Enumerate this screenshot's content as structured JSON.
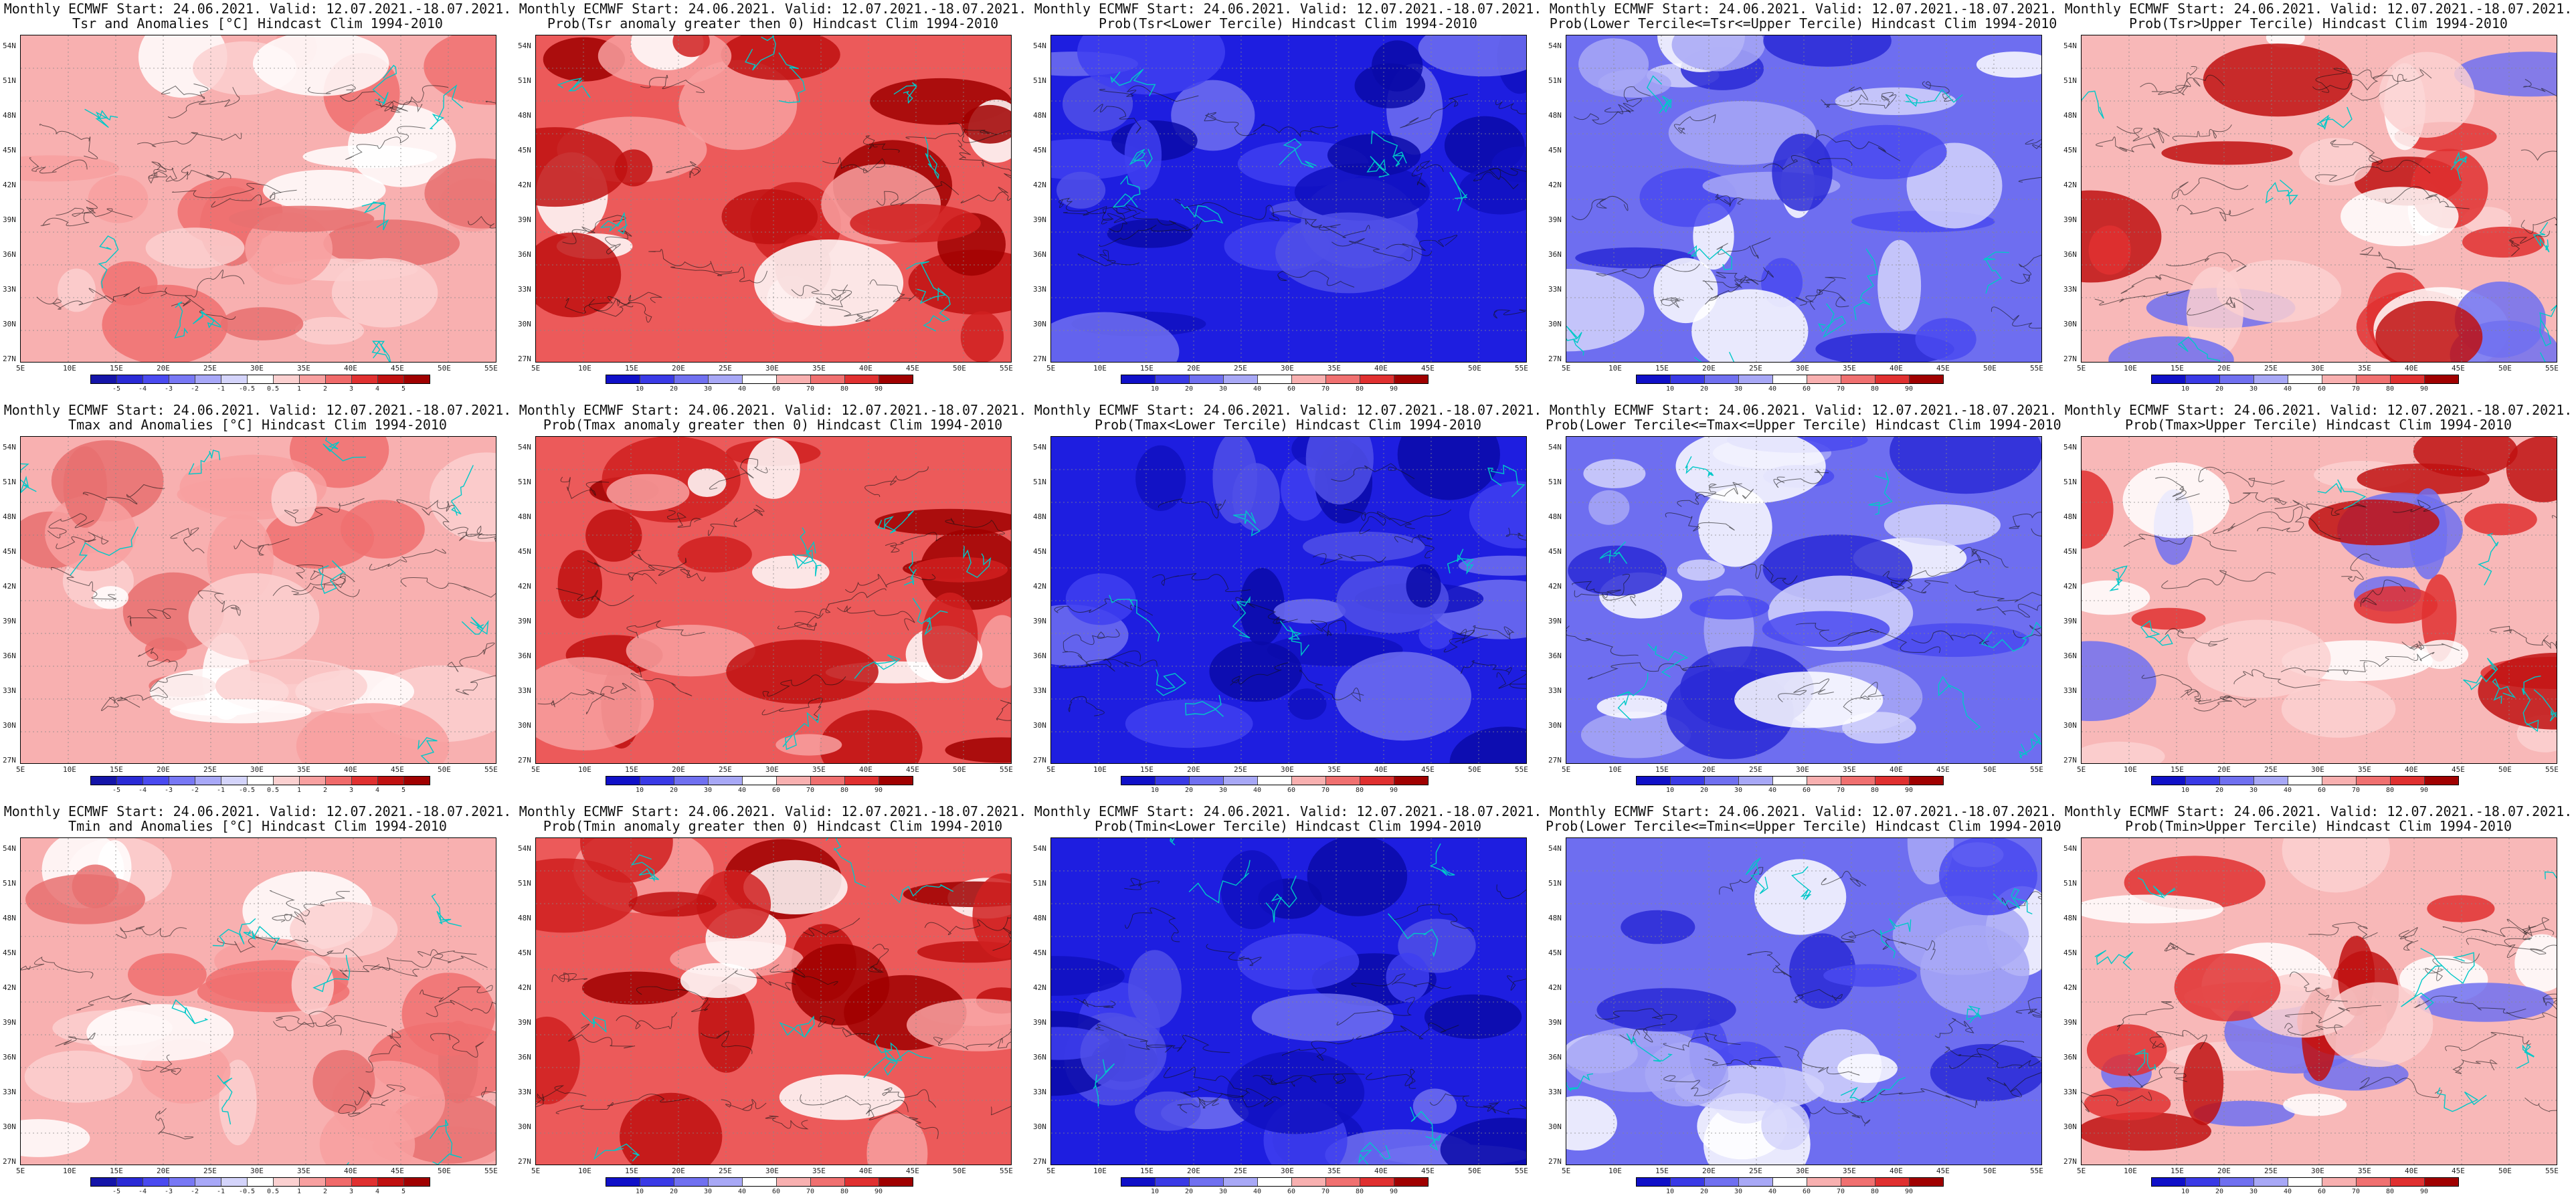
{
  "panels": [
    [
      {
        "line1": "Monthly ECMWF Start: 24.06.2021. Valid: 12.07.2021.-18.07.2021.",
        "line2": "Tsr and Anomalies [°C] Hindcast Clim 1994-2010",
        "scale": "anom",
        "theme": "anom"
      },
      {
        "line1": "Monthly ECMWF Start: 24.06.2021. Valid: 12.07.2021.-18.07.2021.",
        "line2": "Prob(Tsr anomaly greater then 0) Hindcast Clim 1994-2010",
        "scale": "prob",
        "theme": "hot"
      },
      {
        "line1": "Monthly ECMWF Start: 24.06.2021. Valid: 12.07.2021.-18.07.2021.",
        "line2": "Prob(Tsr<Lower Tercile) Hindcast Clim 1994-2010",
        "scale": "prob",
        "theme": "cold"
      },
      {
        "line1": "Monthly ECMWF Start: 24.06.2021. Valid: 12.07.2021.-18.07.2021.",
        "line2": "Prob(Lower Tercile<=Tsr<=Upper Tercile) Hindcast Clim 1994-2010",
        "scale": "prob",
        "theme": "mid"
      },
      {
        "line1": "Monthly ECMWF Start: 24.06.2021. Valid: 12.07.2021.-18.07.2021.",
        "line2": "Prob(Tsr>Upper Tercile) Hindcast Clim 1994-2010",
        "scale": "prob",
        "theme": "warm"
      }
    ],
    [
      {
        "line1": "Monthly ECMWF Start: 24.06.2021. Valid: 12.07.2021.-18.07.2021.",
        "line2": "Tmax and Anomalies [°C] Hindcast Clim 1994-2010",
        "scale": "anom",
        "theme": "anom"
      },
      {
        "line1": "Monthly ECMWF Start: 24.06.2021. Valid: 12.07.2021.-18.07.2021.",
        "line2": "Prob(Tmax anomaly greater then 0) Hindcast Clim 1994-2010",
        "scale": "prob",
        "theme": "hot"
      },
      {
        "line1": "Monthly ECMWF Start: 24.06.2021. Valid: 12.07.2021.-18.07.2021.",
        "line2": "Prob(Tmax<Lower Tercile) Hindcast Clim 1994-2010",
        "scale": "prob",
        "theme": "cold"
      },
      {
        "line1": "Monthly ECMWF Start: 24.06.2021. Valid: 12.07.2021.-18.07.2021.",
        "line2": "Prob(Lower Tercile<=Tmax<=Upper Tercile) Hindcast Clim 1994-2010",
        "scale": "prob",
        "theme": "mid"
      },
      {
        "line1": "Monthly ECMWF Start: 24.06.2021. Valid: 12.07.2021.-18.07.2021.",
        "line2": "Prob(Tmax>Upper Tercile) Hindcast Clim 1994-2010",
        "scale": "prob",
        "theme": "warm"
      }
    ],
    [
      {
        "line1": "Monthly ECMWF Start: 24.06.2021. Valid: 12.07.2021.-18.07.2021.",
        "line2": "Tmin and Anomalies [°C] Hindcast Clim 1994-2010",
        "scale": "anom",
        "theme": "anom"
      },
      {
        "line1": "Monthly ECMWF Start: 24.06.2021. Valid: 12.07.2021.-18.07.2021.",
        "line2": "Prob(Tmin anomaly greater then 0) Hindcast Clim 1994-2010",
        "scale": "prob",
        "theme": "hot"
      },
      {
        "line1": "Monthly ECMWF Start: 24.06.2021. Valid: 12.07.2021.-18.07.2021.",
        "line2": "Prob(Tmin<Lower Tercile) Hindcast Clim 1994-2010",
        "scale": "prob",
        "theme": "cold"
      },
      {
        "line1": "Monthly ECMWF Start: 24.06.2021. Valid: 12.07.2021.-18.07.2021.",
        "line2": "Prob(Lower Tercile<=Tmin<=Upper Tercile) Hindcast Clim 1994-2010",
        "scale": "prob",
        "theme": "mid"
      },
      {
        "line1": "Monthly ECMWF Start: 24.06.2021. Valid: 12.07.2021.-18.07.2021.",
        "line2": "Prob(Tmin>Upper Tercile) Hindcast Clim 1994-2010",
        "scale": "prob",
        "theme": "warm"
      }
    ]
  ],
  "axes": {
    "lat_labels": [
      "54N",
      "51N",
      "48N",
      "45N",
      "42N",
      "39N",
      "36N",
      "33N",
      "30N",
      "27N"
    ],
    "lon_labels": [
      "5E",
      "10E",
      "15E",
      "20E",
      "25E",
      "30E",
      "35E",
      "40E",
      "45E",
      "50E",
      "55E"
    ]
  },
  "scales": {
    "anom": {
      "ticks": [
        "-5",
        "-4",
        "-3",
        "-2",
        "-1",
        "-0.5",
        "0.5",
        "1",
        "2",
        "3",
        "4",
        "5"
      ],
      "colors": [
        "#1414a8",
        "#2a2ad6",
        "#4a4af0",
        "#7878f5",
        "#a8a8f8",
        "#d4d4fb",
        "#ffffff",
        "#fbd0d0",
        "#f8a0a0",
        "#f06a6a",
        "#e03030",
        "#c01010",
        "#a00000"
      ]
    },
    "prob": {
      "ticks": [
        "10",
        "20",
        "30",
        "40",
        "60",
        "70",
        "80",
        "90"
      ],
      "colors": [
        "#1010c8",
        "#3a3ae6",
        "#7070f0",
        "#a8a8f6",
        "#ffffff",
        "#f8b0b0",
        "#f07070",
        "#e03030",
        "#a00000"
      ]
    }
  },
  "themes": {
    "anom": {
      "base": "#f8b0b0",
      "blobs": [
        "#fbd0d0",
        "#f07070",
        "#ffffff",
        "#f8a0a0",
        "#e87070"
      ]
    },
    "hot": {
      "base": "#ec5a5a",
      "blobs": [
        "#c01010",
        "#a00000",
        "#f8a0a0",
        "#ffffff",
        "#d02020"
      ]
    },
    "cold": {
      "base": "#1e1ee0",
      "blobs": [
        "#0a0aa8",
        "#4040f0",
        "#7070f0",
        "#1010c0",
        "#5050e8"
      ]
    },
    "mid": {
      "base": "#6e6ef0",
      "blobs": [
        "#ffffff",
        "#a8a8f6",
        "#2a2ad6",
        "#d4d4fb",
        "#4a4af0"
      ]
    },
    "warm": {
      "base": "#f8b8b8",
      "blobs": [
        "#e03030",
        "#ffffff",
        "#7070f0",
        "#c01010",
        "#fbd0d0"
      ]
    }
  },
  "contour_color": "#111111",
  "coast_color": "#00c8c8"
}
